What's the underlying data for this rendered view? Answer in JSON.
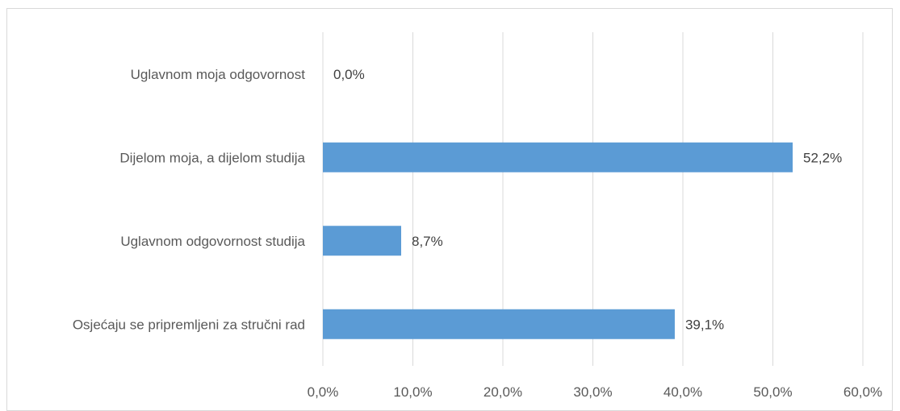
{
  "chart_data": {
    "type": "bar",
    "orientation": "horizontal",
    "categories": [
      "Uglavnom moja odgovornost",
      "Dijelom moja, a dijelom studija",
      "Uglavnom odgovornost studija",
      "Osjećaju se pripremljeni za stručni rad"
    ],
    "values": [
      0.0,
      52.2,
      8.7,
      39.1
    ],
    "data_labels": [
      "0,0%",
      "52,2%",
      "8,7%",
      "39,1%"
    ],
    "x_ticks": [
      0,
      10,
      20,
      30,
      40,
      50,
      60
    ],
    "x_tick_labels": [
      "0,0%",
      "10,0%",
      "20,0%",
      "30,0%",
      "40,0%",
      "50,0%",
      "60,0%"
    ],
    "xlim": [
      0,
      60
    ],
    "title": "",
    "xlabel": "",
    "ylabel": "",
    "grid": "vertical",
    "legend": "none",
    "bar_color": "#5b9bd5"
  }
}
